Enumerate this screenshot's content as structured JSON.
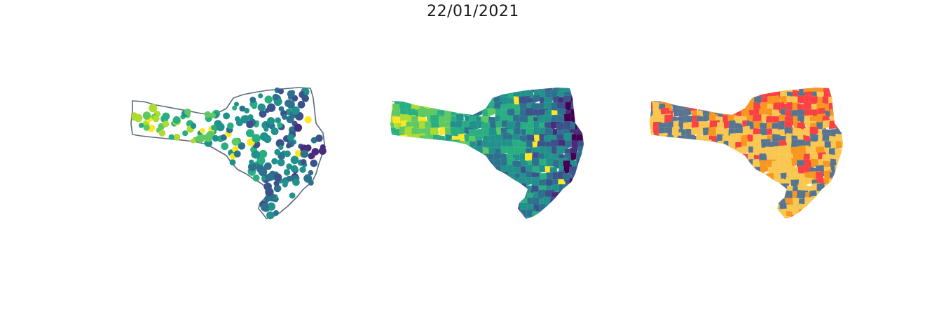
{
  "title": "22/01/2021",
  "maps": [
    {
      "name": "points",
      "style": "proportional-points",
      "outline_color": "#5a6b80"
    },
    {
      "name": "choropleth",
      "style": "continuous-choropleth"
    },
    {
      "name": "category",
      "style": "categorical-choropleth"
    }
  ],
  "colors": {
    "viridis": [
      "#440154",
      "#472d7b",
      "#3b528b",
      "#2c728e",
      "#21918c",
      "#28ae80",
      "#5ec962",
      "#addc30",
      "#fde725"
    ],
    "categories": [
      "#f94144",
      "#f8961e",
      "#f9c74f",
      "#577590"
    ]
  }
}
